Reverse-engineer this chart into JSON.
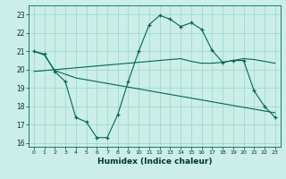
{
  "xlabel": "Humidex (Indice chaleur)",
  "background_color": "#cceee8",
  "grid_color": "#99ddcc",
  "line_color": "#006655",
  "xlim": [
    -0.5,
    23.5
  ],
  "ylim": [
    15.8,
    23.5
  ],
  "yticks": [
    16,
    17,
    18,
    19,
    20,
    21,
    22,
    23
  ],
  "xticks": [
    0,
    1,
    2,
    3,
    4,
    5,
    6,
    7,
    8,
    9,
    10,
    11,
    12,
    13,
    14,
    15,
    16,
    17,
    18,
    19,
    20,
    21,
    22,
    23
  ],
  "line1_x": [
    0,
    1,
    2,
    3,
    4,
    5,
    6,
    7,
    8,
    9,
    10,
    11,
    12,
    13,
    14,
    15,
    16,
    17,
    18,
    19,
    20,
    21,
    22,
    23
  ],
  "line1_y": [
    21.0,
    20.85,
    19.9,
    19.35,
    17.4,
    17.15,
    16.3,
    16.3,
    17.55,
    19.35,
    21.0,
    22.45,
    22.95,
    22.75,
    22.35,
    22.55,
    22.2,
    21.05,
    20.4,
    20.5,
    20.5,
    18.85,
    18.0,
    17.4
  ],
  "line2_x": [
    0,
    1,
    2,
    3,
    4,
    5,
    6,
    7,
    8,
    9,
    10,
    11,
    12,
    13,
    14,
    15,
    16,
    17,
    18,
    19,
    20,
    21,
    22,
    23
  ],
  "line2_y": [
    21.0,
    20.8,
    19.95,
    19.75,
    19.55,
    19.45,
    19.35,
    19.25,
    19.15,
    19.05,
    18.95,
    18.85,
    18.75,
    18.65,
    18.55,
    18.45,
    18.35,
    18.25,
    18.15,
    18.05,
    17.95,
    17.85,
    17.75,
    17.65
  ],
  "line3_x": [
    0,
    1,
    2,
    3,
    4,
    5,
    6,
    7,
    8,
    9,
    10,
    11,
    12,
    13,
    14,
    15,
    16,
    17,
    18,
    19,
    20,
    21,
    22,
    23
  ],
  "line3_y": [
    19.9,
    19.95,
    20.0,
    20.05,
    20.1,
    20.15,
    20.2,
    20.25,
    20.3,
    20.35,
    20.4,
    20.45,
    20.5,
    20.55,
    20.6,
    20.45,
    20.35,
    20.35,
    20.4,
    20.5,
    20.6,
    20.55,
    20.45,
    20.35
  ]
}
